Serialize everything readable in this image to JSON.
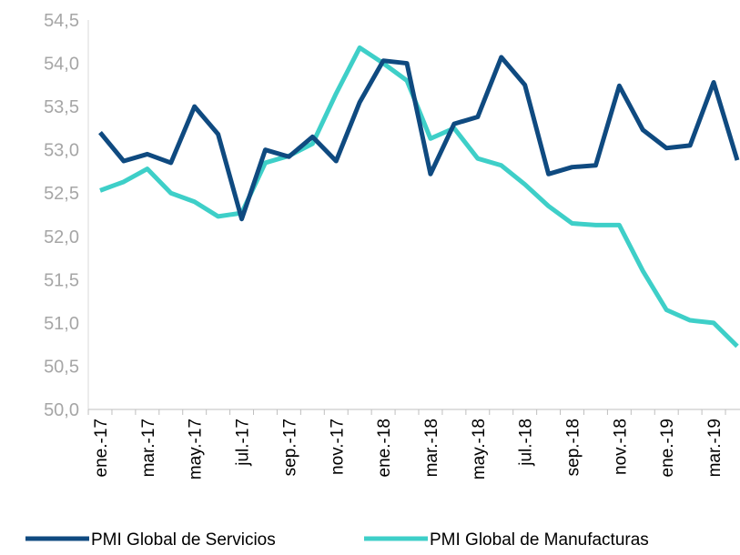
{
  "chart_data": {
    "type": "line",
    "categories": [
      "ene.-17",
      null,
      "mar.-17",
      null,
      "may.-17",
      null,
      "jul.-17",
      null,
      "sep.-17",
      null,
      "nov.-17",
      null,
      "ene.-18",
      null,
      "mar.-18",
      null,
      "may.-18",
      null,
      "jul.-18",
      null,
      "sep.-18",
      null,
      "nov.-18",
      null,
      "ene.-19",
      null,
      "mar.-19",
      null
    ],
    "series": [
      {
        "name": "PMI Global de Servicios",
        "color": "#0f4a80",
        "values": [
          53.2,
          52.87,
          52.95,
          52.85,
          53.5,
          53.18,
          52.2,
          53.0,
          52.92,
          53.15,
          52.87,
          53.55,
          54.03,
          54.0,
          52.72,
          53.3,
          53.38,
          54.07,
          53.75,
          52.72,
          52.8,
          52.82,
          53.74,
          53.23,
          53.02,
          53.05,
          53.78,
          52.88
        ]
      },
      {
        "name": "PMI Global de Manufacturas",
        "color": "#3ecfc8",
        "values": [
          52.53,
          52.63,
          52.78,
          52.5,
          52.4,
          52.23,
          52.27,
          52.85,
          52.93,
          53.07,
          53.65,
          54.18,
          54.0,
          53.8,
          53.13,
          53.25,
          52.9,
          52.82,
          52.6,
          52.35,
          52.15,
          52.13,
          52.13,
          51.6,
          51.15,
          51.03,
          51.0,
          50.73
        ]
      }
    ],
    "ylim": [
      50,
      54.5
    ],
    "yticks": [
      {
        "value": 50,
        "label": "50,0"
      },
      {
        "value": 50.5,
        "label": "50,5"
      },
      {
        "value": 51,
        "label": "51,0"
      },
      {
        "value": 51.5,
        "label": "51,5"
      },
      {
        "value": 52,
        "label": "52,0"
      },
      {
        "value": 52.5,
        "label": "52,5"
      },
      {
        "value": 53,
        "label": "53,0"
      },
      {
        "value": 53.5,
        "label": "53,5"
      },
      {
        "value": 54,
        "label": "54,0"
      },
      {
        "value": 54.5,
        "label": "54,5"
      }
    ],
    "grid": false,
    "legend": "bottom"
  }
}
